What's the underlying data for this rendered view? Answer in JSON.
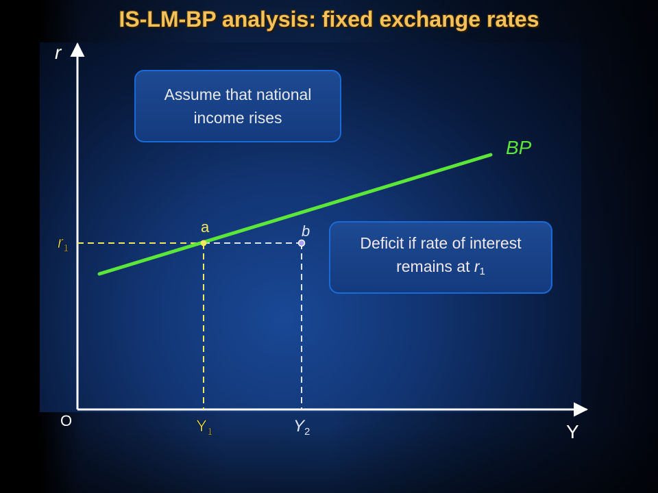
{
  "slide": {
    "title": "IS-LM-BP analysis: fixed exchange rates"
  },
  "axes": {
    "y_label": "r",
    "x_label": "Y",
    "origin_label": "O"
  },
  "curve": {
    "label": "BP",
    "color": "#5ce63a"
  },
  "points": {
    "a": {
      "label": "a",
      "color": "#f5e85a"
    },
    "b": {
      "label": "b",
      "color": "#a9a0ff"
    }
  },
  "ticks": {
    "r1": {
      "base": "r",
      "sub": "1"
    },
    "Y1": {
      "base": "Y",
      "sub": "1"
    },
    "Y2": {
      "base": "Y",
      "sub": "2"
    }
  },
  "callouts": {
    "assume": {
      "line1": "Assume that national",
      "line2": "income rises"
    },
    "deficit": {
      "line1": "Deficit if rate of interest",
      "line2_prefix": "remains at ",
      "line2_var": "r",
      "line2_sub": "1"
    }
  },
  "colors": {
    "title": "#f3c25a",
    "axis": "#ffffff",
    "guide_yellow": "#f2ea5e",
    "guide_white": "#dfe6f5",
    "callout_border": "#1a6bd8"
  }
}
